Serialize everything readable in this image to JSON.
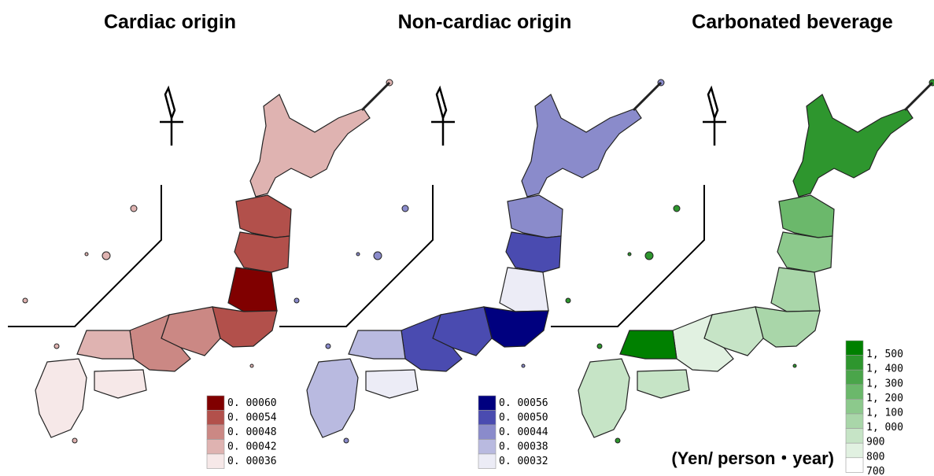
{
  "panels": [
    {
      "title": "Cardiac origin",
      "legend": [
        {
          "label": "0. 00060",
          "color": "#800000"
        },
        {
          "label": "0. 00054",
          "color": "#b2504b"
        },
        {
          "label": "0. 00048",
          "color": "#cb8884"
        },
        {
          "label": "0. 00042",
          "color": "#dfb3b1"
        },
        {
          "label": "0. 00036",
          "color": "#f6e8e8"
        }
      ]
    },
    {
      "title": "Non-cardiac origin",
      "legend": [
        {
          "label": "0. 00056",
          "color": "#00007f"
        },
        {
          "label": "0. 00050",
          "color": "#4a4bb0"
        },
        {
          "label": "0. 00044",
          "color": "#8a8bcb"
        },
        {
          "label": "0. 00038",
          "color": "#b9bae0"
        },
        {
          "label": "0. 00032",
          "color": "#ececf6"
        }
      ]
    },
    {
      "title": "Carbonated beverage",
      "legend": [
        {
          "label": "1, 500",
          "color": "#008000"
        },
        {
          "label": "1, 400",
          "color": "#2e962e"
        },
        {
          "label": "1, 300",
          "color": "#4aa54a"
        },
        {
          "label": "1, 200",
          "color": "#6bb86b"
        },
        {
          "label": "1, 100",
          "color": "#8cc98c"
        },
        {
          "label": "1, 000",
          "color": "#a9d6a9"
        },
        {
          "label": "900",
          "color": "#c6e4c6"
        },
        {
          "label": "800",
          "color": "#e1f1e1"
        },
        {
          "label": "700",
          "color": "#ffffff"
        }
      ],
      "unit_label": "(Yen/ person・year)"
    }
  ]
}
